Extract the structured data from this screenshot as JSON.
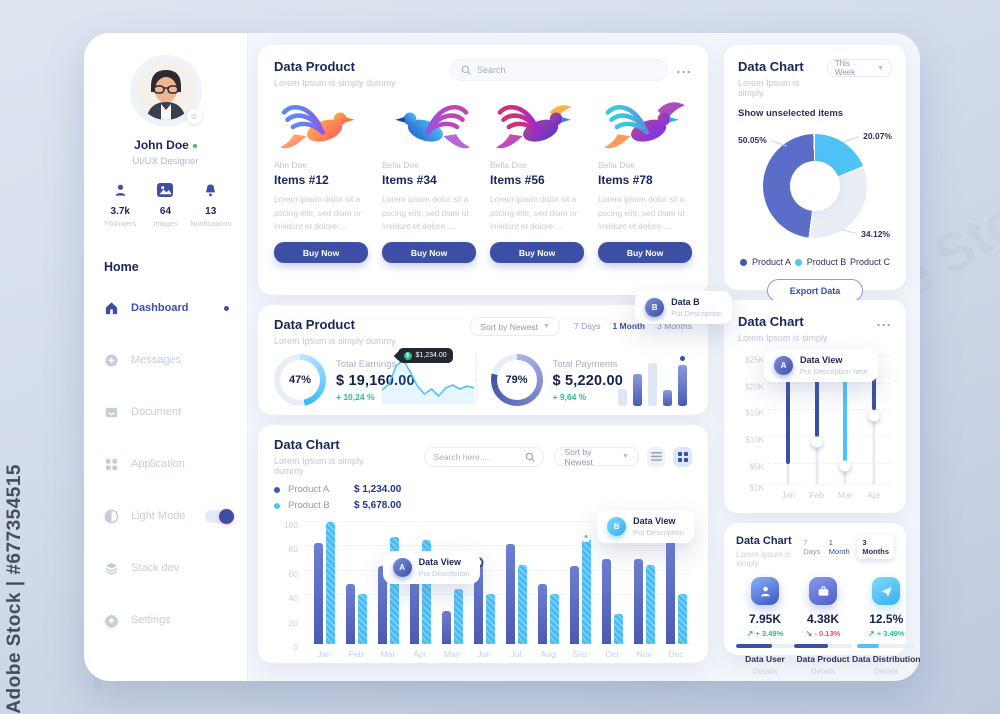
{
  "watermark": {
    "side": "Adobe Stock | #677354515",
    "diagonal": "Adobe Stock"
  },
  "colors": {
    "accent": "#3c4fa4",
    "cyan": "#4fc3f7",
    "green": "#27c08d",
    "red": "#ef4f6e",
    "navy": "#1b2559"
  },
  "sidebar": {
    "user": {
      "name": "John Doe",
      "role": "UI/UX Designer"
    },
    "stats": [
      {
        "value": "3.7k",
        "label": "Followers",
        "icon": "user-icon"
      },
      {
        "value": "64",
        "label": "Images",
        "icon": "image-icon"
      },
      {
        "value": "13",
        "label": "Notifications",
        "icon": "bell-icon"
      }
    ],
    "section": "Home",
    "menu": [
      {
        "label": "Dashboard",
        "icon": "home-icon",
        "active": true
      },
      {
        "label": "Messages",
        "icon": "message-icon"
      },
      {
        "label": "Document",
        "icon": "document-icon"
      },
      {
        "label": "Application",
        "icon": "grid-icon"
      },
      {
        "label": "Light Mode",
        "icon": "contrast-icon",
        "toggle_on": true
      },
      {
        "label": "Stack dev",
        "icon": "layers-icon"
      },
      {
        "label": "Settings",
        "icon": "gear-icon"
      }
    ]
  },
  "products_card": {
    "title": "Data Product",
    "subtitle": "Lorem Ipsum is simply dummy",
    "search_placeholder": "Search",
    "menu_icon": "...",
    "items": [
      {
        "author": "Ahn Doe",
        "name": "Items #12",
        "desc": "Lorem ipsum dolor sit a pscing elitr, sed diam or invidunt et dolore ...",
        "button": "Buy Now"
      },
      {
        "author": "Bella Doe",
        "name": "Items #34",
        "desc": "Lorem ipsum dolor sit a pscing elitr, sed diam or invidunt et dolore ...",
        "button": "Buy Now"
      },
      {
        "author": "Bella Doe",
        "name": "Items #56",
        "desc": "Lorem ipsum dolor sit a pscing elitr, sed diam or invidunt et dolore ...",
        "button": "Buy Now"
      },
      {
        "author": "Bella Doe",
        "name": "Items #78",
        "desc": "Lorem ipsum dolor sit a pscing elitr, sed diam or invidunt et dolore ...",
        "button": "Buy Now"
      }
    ]
  },
  "earnings_card": {
    "title": "Data Product",
    "subtitle": "Lorem Ipsum is simply dummy",
    "sort": "Sort by Newest",
    "tabs": [
      "7 Days",
      "1 Month",
      "3 Months"
    ],
    "tooltip": {
      "badge": "B",
      "title": "Data B",
      "desc": "Put Description"
    },
    "spark_badge": "$1,234.00",
    "stats": [
      {
        "percent": "47%",
        "percent_num": 47,
        "label": "Total Earnings",
        "value": "$ 19,160.00",
        "change": "+ 10,24 %"
      },
      {
        "percent": "79%",
        "percent_num": 79,
        "label": "Total Payments",
        "value": "$ 5,220.00",
        "change": "+ 9,64 %"
      }
    ]
  },
  "barchart_card": {
    "title": "Data Chart",
    "subtitle": "Lorem Ipsum is simply dummy",
    "search_placeholder": "Search here....",
    "sort": "Sort by Newest",
    "legend": [
      {
        "name": "Product A",
        "value": "$ 1,234.00"
      },
      {
        "name": "Product B",
        "value": "$ 5,678.00"
      }
    ],
    "tooltips": [
      {
        "badge": "A",
        "title": "Data View",
        "desc": "Put Description"
      },
      {
        "badge": "B",
        "title": "Data View",
        "desc": "Put Description"
      }
    ]
  },
  "donut_card": {
    "title": "Data Chart",
    "period": "This Week",
    "subtitle": "Lorem Ipsum is simply",
    "toggle_label": "Show unselected items",
    "legend": [
      {
        "name": "Product A"
      },
      {
        "name": "Product B"
      },
      {
        "name": "Product C"
      }
    ],
    "export": "Export Data"
  },
  "slider_card": {
    "title": "Data Chart",
    "subtitle": "Lorem Ipsum is simply",
    "menu_icon": "...",
    "tooltip": {
      "badge": "A",
      "title": "Data View",
      "desc": "Put Description here"
    }
  },
  "stats_card": {
    "title": "Data Chart",
    "subtitle": "Lorem Ipsum is simply",
    "tabs": [
      "7 Days",
      "1 Month",
      "3 Months"
    ],
    "items": [
      {
        "icon": "user-icon",
        "value": "7.95K",
        "change": "+ 3.49%",
        "trend": "up",
        "progress": 62,
        "bar_color": "#3d4fa5",
        "label": "Data User",
        "link": "Details"
      },
      {
        "icon": "briefcase-icon",
        "value": "4.38K",
        "change": "- 0.13%",
        "trend": "down",
        "progress": 58,
        "bar_color": "#3d4fa5",
        "label": "Data Product",
        "link": "Details"
      },
      {
        "icon": "send-icon",
        "value": "12.5%",
        "change": "+ 3.49%",
        "trend": "up",
        "progress": 38,
        "bar_color": "#4fc3f7",
        "label": "Data Distribution",
        "link": "Details"
      }
    ]
  },
  "chart_data": [
    {
      "id": "monthly-bars",
      "type": "bar",
      "title": "Data Chart",
      "categories": [
        "Jan",
        "Feb",
        "Mar",
        "Apr",
        "May",
        "Jun",
        "Jul",
        "Aug",
        "Sep",
        "Oct",
        "Nov",
        "Dec"
      ],
      "series": [
        {
          "name": "Product A",
          "color": "#5a6cc0",
          "values": [
            83,
            49,
            64,
            65,
            27,
            66,
            82,
            49,
            64,
            70,
            70,
            88
          ]
        },
        {
          "name": "Product B",
          "color": "#49bdf2",
          "values": [
            100,
            41,
            88,
            85,
            45,
            41,
            65,
            41,
            88,
            25,
            65,
            41
          ]
        }
      ],
      "ylim": [
        0,
        100
      ],
      "yticks": [
        0,
        20,
        40,
        60,
        80,
        100
      ],
      "grid": true,
      "legend_position": "top-left",
      "markers": [
        {
          "category": "Jun",
          "series": "Product A"
        },
        {
          "category": "Sep",
          "series": "Product B"
        }
      ]
    },
    {
      "id": "donut",
      "type": "pie",
      "slices": [
        {
          "name": "Product B",
          "value": 20.07,
          "label": "20.07%",
          "color": "#4fc3f7"
        },
        {
          "name": "Product C",
          "value": 34.12,
          "label": "34.12%",
          "color": "#e9edf6"
        },
        {
          "name": "Product A",
          "value": 50.05,
          "label": "50.05%",
          "color": "#5b6dc8"
        }
      ]
    },
    {
      "id": "range-columns",
      "type": "bar",
      "categories": [
        "Jan",
        "Feb",
        "Mar",
        "Apr"
      ],
      "ylabels": [
        "$25K",
        "$20K",
        "$15K",
        "$10K",
        "$5K",
        "$1K"
      ],
      "ytick_values": [
        25,
        20,
        15,
        10,
        5,
        1
      ],
      "ylim": [
        1,
        25
      ],
      "columns": [
        {
          "from": 5,
          "to": 23,
          "color": "#3d4fa5",
          "knob": null,
          "dot": false
        },
        {
          "from": 10,
          "to": 21,
          "color": "#3d4fa5",
          "knob": 9,
          "dot": false
        },
        {
          "from": 5,
          "to": 20.5,
          "color": "#4fc3f7",
          "knob": 4.5,
          "dot": false
        },
        {
          "from": 15,
          "to": 24,
          "color": "#3d4fa5",
          "knob": 14,
          "dot": true
        }
      ]
    },
    {
      "id": "earnings-spark",
      "type": "line",
      "color": "#4fc3f7",
      "points": [
        34,
        28,
        10,
        4,
        16,
        30,
        38,
        33,
        40,
        32,
        29,
        33,
        30,
        32
      ]
    },
    {
      "id": "payments-minibars",
      "type": "bar",
      "values": [
        30,
        55,
        75,
        28,
        70
      ],
      "kinds": [
        "light",
        "dark",
        "light",
        "dark",
        "dot"
      ]
    }
  ]
}
